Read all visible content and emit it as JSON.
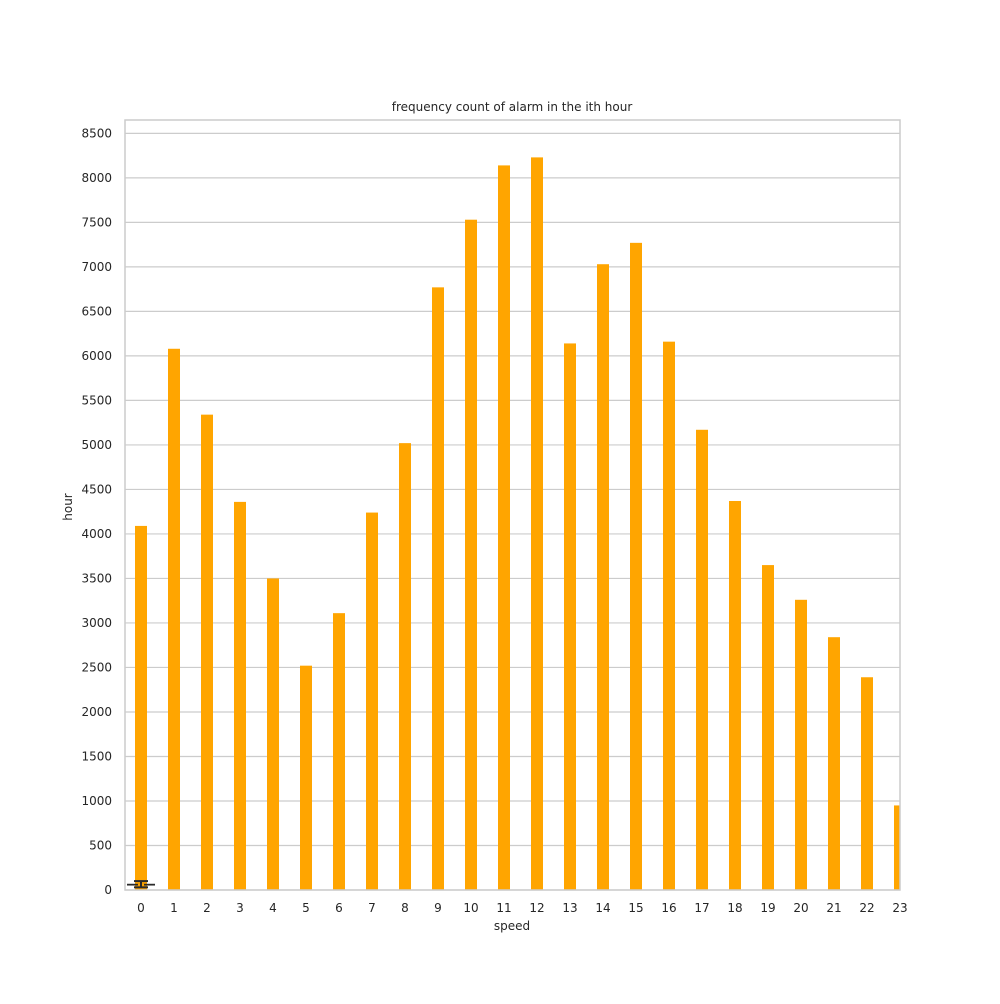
{
  "chart_data": {
    "type": "bar",
    "title": "frequency count of alarm in the ith hour",
    "xlabel": "speed",
    "ylabel": "hour",
    "categories": [
      "0",
      "1",
      "2",
      "3",
      "4",
      "5",
      "6",
      "7",
      "8",
      "9",
      "10",
      "11",
      "12",
      "13",
      "14",
      "15",
      "16",
      "17",
      "18",
      "19",
      "20",
      "21",
      "22",
      "23"
    ],
    "values": [
      4090,
      6080,
      5340,
      4360,
      3500,
      2520,
      3110,
      4240,
      5020,
      6770,
      7530,
      8140,
      8230,
      6140,
      7030,
      7270,
      6160,
      5170,
      4370,
      3650,
      3260,
      2840,
      2390,
      950
    ],
    "yticks": [
      0,
      500,
      1000,
      1500,
      2000,
      2500,
      3000,
      3500,
      4000,
      4500,
      5000,
      5500,
      6000,
      6500,
      7000,
      7500,
      8000,
      8500
    ],
    "ylim": [
      0,
      8650
    ],
    "grid": true,
    "bar_color": "#FFA500",
    "overlay": {
      "type": "boxplot",
      "category": "0",
      "median": 60,
      "q1": 50,
      "q3": 70,
      "whisker_low": 30,
      "whisker_high": 100,
      "color": "#2b2b2b"
    }
  }
}
